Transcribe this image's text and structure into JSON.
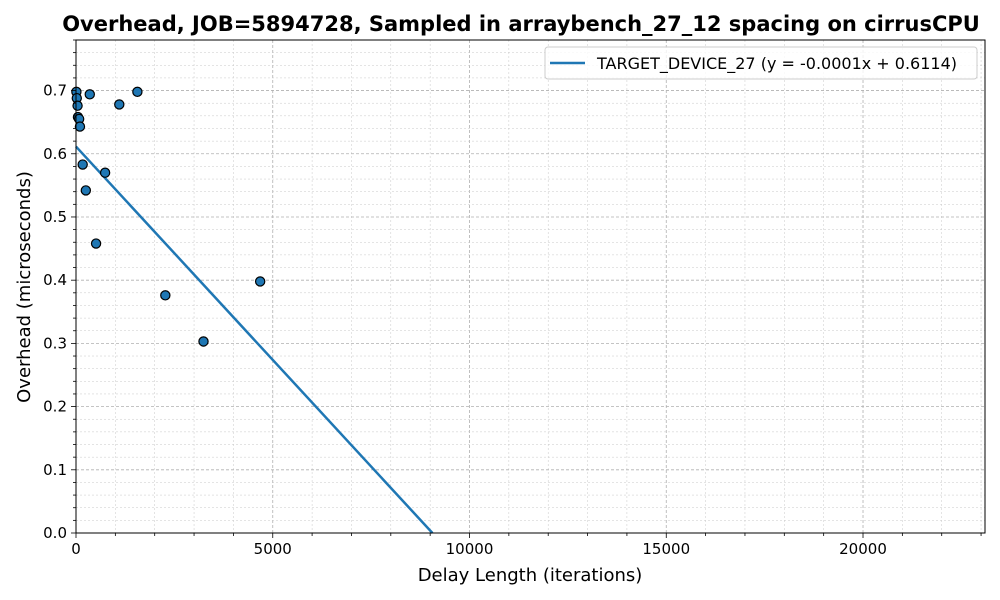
{
  "chart_data": {
    "type": "scatter",
    "title": "Overhead, JOB=5894728, Sampled in arraybench_27_12 spacing on cirrusCPU",
    "xlabel": "Delay Length (iterations)",
    "ylabel": "Overhead (microseconds)",
    "xlim": [
      0,
      23100
    ],
    "ylim": [
      0,
      0.78
    ],
    "xticks": [
      0,
      5000,
      10000,
      15000,
      20000
    ],
    "yticks": [
      0.0,
      0.1,
      0.2,
      0.3,
      0.4,
      0.5,
      0.6,
      0.7
    ],
    "xtick_labels": [
      "0",
      "5000",
      "10000",
      "15000",
      "20000"
    ],
    "ytick_labels": [
      "0.0",
      "0.1",
      "0.2",
      "0.3",
      "0.4",
      "0.5",
      "0.6",
      "0.7"
    ],
    "grid": true,
    "legend_position": "top-right",
    "points": [
      {
        "x": 10,
        "y": 0.698
      },
      {
        "x": 20,
        "y": 0.688
      },
      {
        "x": 40,
        "y": 0.676
      },
      {
        "x": 50,
        "y": 0.658
      },
      {
        "x": 80,
        "y": 0.655
      },
      {
        "x": 100,
        "y": 0.643
      },
      {
        "x": 170,
        "y": 0.583
      },
      {
        "x": 250,
        "y": 0.542
      },
      {
        "x": 350,
        "y": 0.694
      },
      {
        "x": 510,
        "y": 0.458
      },
      {
        "x": 740,
        "y": 0.57
      },
      {
        "x": 1100,
        "y": 0.678
      },
      {
        "x": 1560,
        "y": 0.698
      },
      {
        "x": 2270,
        "y": 0.376
      },
      {
        "x": 3240,
        "y": 0.303
      },
      {
        "x": 4680,
        "y": 0.398
      }
    ],
    "series": [
      {
        "name": "TARGET_DEVICE_27 (y = -0.0001x + 0.6114)",
        "slope": -6.75e-05,
        "intercept": 0.6114,
        "color": "#1f77b4"
      }
    ],
    "point_color": "#1f77b4"
  }
}
